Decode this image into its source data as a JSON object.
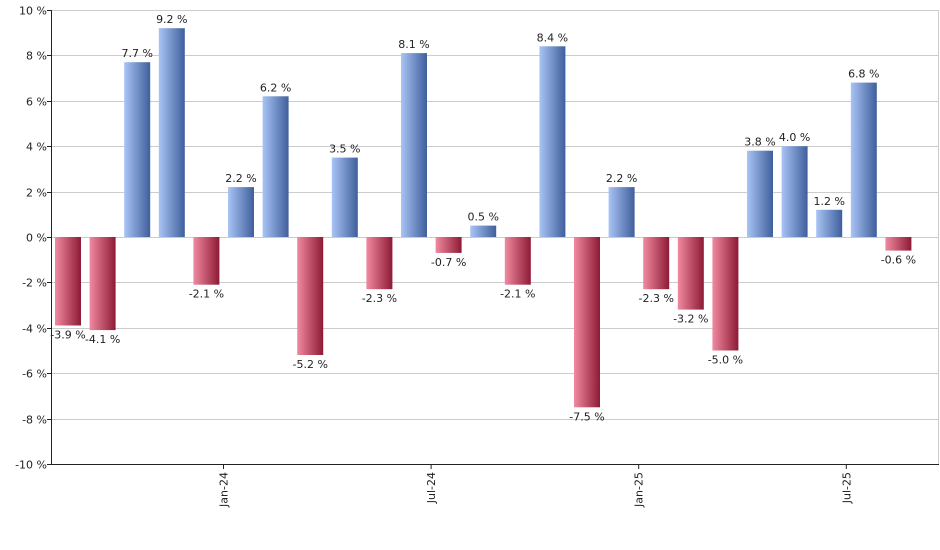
{
  "chart_data": {
    "type": "bar",
    "title": "",
    "xlabel": "",
    "ylabel": "",
    "ylim": [
      -10,
      10
    ],
    "y_ticks": [
      -10,
      -8,
      -6,
      -4,
      -2,
      0,
      2,
      4,
      6,
      8,
      10
    ],
    "y_tick_suffix": " %",
    "x_tick_labels": [
      {
        "label": "Jan-24",
        "after_index": 4
      },
      {
        "label": "Jul-24",
        "after_index": 10
      },
      {
        "label": "Jan-25",
        "after_index": 16
      },
      {
        "label": "Jul-25",
        "after_index": 22
      }
    ],
    "values": [
      -3.9,
      -4.1,
      7.7,
      9.2,
      -2.1,
      2.2,
      6.2,
      -5.2,
      3.5,
      -2.3,
      8.1,
      -0.7,
      0.5,
      -2.1,
      8.4,
      -7.5,
      2.2,
      -2.3,
      -3.2,
      -5.0,
      3.8,
      4.0,
      1.2,
      6.8,
      -0.6
    ],
    "value_labels": [
      "-3.9 %",
      "-4.1 %",
      "7.7 %",
      "9.2 %",
      "-2.1 %",
      "2.2 %",
      "6.2 %",
      "-5.2 %",
      "3.5 %",
      "-2.3 %",
      "8.1 %",
      "-0.7 %",
      "0.5 %",
      "-2.1 %",
      "8.4 %",
      "-7.5 %",
      "2.2 %",
      "-2.3 %",
      "-3.2 %",
      "-5.0 %",
      "3.8 %",
      "4.0 %",
      "1.2 %",
      "6.8 %",
      "-0.6 %"
    ],
    "grid": true,
    "legend": "none",
    "colors": {
      "positive_light": "#a9c4f5",
      "positive_dark": "#3f5f9c",
      "negative_light": "#f08aa0",
      "negative_dark": "#8e1a35",
      "grid": "#cccccc",
      "axis": "#222222"
    }
  }
}
